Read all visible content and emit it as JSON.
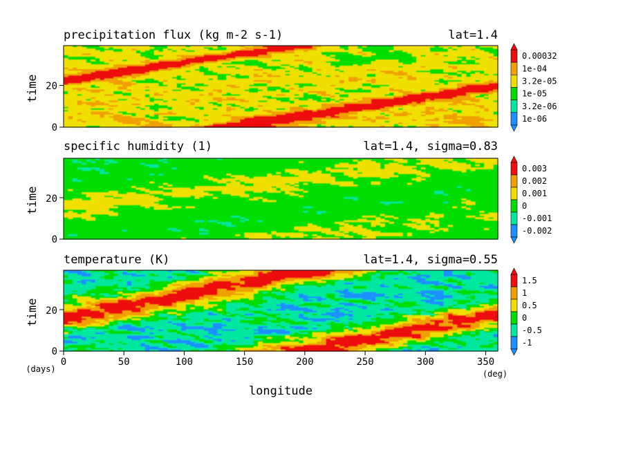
{
  "colors": {
    "blue": "#1e90ff",
    "cyan": "#00e8a0",
    "green": "#00dd00",
    "yellow": "#f0e000",
    "orange": "#f0a000",
    "red": "#ee1010"
  },
  "chart_data": [
    {
      "type": "heatmap",
      "title": "precipitation flux (kg m-2 s-1)",
      "subtitle": "lat=1.4",
      "ylabel": "time",
      "xlim": [
        0,
        360
      ],
      "ylim": [
        0,
        39
      ],
      "yticks": [
        "0",
        "20"
      ],
      "colorbar": {
        "labels": [
          "0.00032",
          "1e-04",
          "3.2e-05",
          "1e-05",
          "3.2e-06",
          "1e-06"
        ],
        "bins": [
          "blue",
          "cyan",
          "green",
          "yellow",
          "orange",
          "red"
        ],
        "extend": "both"
      },
      "field": {
        "base": 2.6,
        "noise": 1.05,
        "drift": 1.0,
        "bands": [
          {
            "intercept": 22,
            "slope": 0.088,
            "width": 2.4,
            "amp": 3.0
          },
          {
            "intercept": -12,
            "slope": 0.088,
            "width": 2.4,
            "amp": 3.0
          },
          {
            "intercept": 55,
            "slope": 0.088,
            "width": 2.2,
            "amp": 2.5
          }
        ]
      }
    },
    {
      "type": "heatmap",
      "title": "specific humidity (1)",
      "subtitle": "lat=1.4, sigma=0.83",
      "ylabel": "time",
      "xlim": [
        0,
        360
      ],
      "ylim": [
        0,
        39
      ],
      "yticks": [
        "0",
        "20"
      ],
      "colorbar": {
        "labels": [
          "0.003",
          "0.002",
          "0.001",
          "0",
          "-0.001",
          "-0.002"
        ],
        "bins": [
          "blue",
          "cyan",
          "green",
          "yellow",
          "orange",
          "red"
        ],
        "extend": "both"
      },
      "field": {
        "base": 1.75,
        "noise": 0.55,
        "drift": 0.0,
        "bands": [
          {
            "intercept": 14,
            "slope": 0.075,
            "width": 9,
            "amp": 0.9
          },
          {
            "intercept": -14,
            "slope": 0.075,
            "width": 7,
            "amp": 0.8
          }
        ]
      }
    },
    {
      "type": "heatmap",
      "title": "temperature (K)",
      "subtitle": "lat=1.4, sigma=0.55",
      "ylabel": "time",
      "xlabel": "longitude",
      "x_unit": "(deg)",
      "y_unit": "(days)",
      "xlim": [
        0,
        360
      ],
      "ylim": [
        0,
        39
      ],
      "xticks": [
        "0",
        "50",
        "100",
        "150",
        "200",
        "250",
        "300",
        "350"
      ],
      "yticks": [
        "0",
        "20"
      ],
      "colorbar": {
        "labels": [
          "1.5",
          "1",
          "0.5",
          "0",
          "-0.5",
          "-1"
        ],
        "bins": [
          "blue",
          "cyan",
          "green",
          "yellow",
          "orange",
          "red"
        ],
        "extend": "both"
      },
      "field": {
        "base": 1.0,
        "noise": 1.25,
        "drift": 0.0,
        "bands": [
          {
            "intercept": 16,
            "slope": 0.11,
            "width": 6,
            "amp": 4.2
          },
          {
            "intercept": -22,
            "slope": 0.11,
            "width": 6,
            "amp": 4.2
          },
          {
            "intercept": 52,
            "slope": 0.11,
            "width": 5,
            "amp": 3.2
          }
        ]
      }
    }
  ]
}
